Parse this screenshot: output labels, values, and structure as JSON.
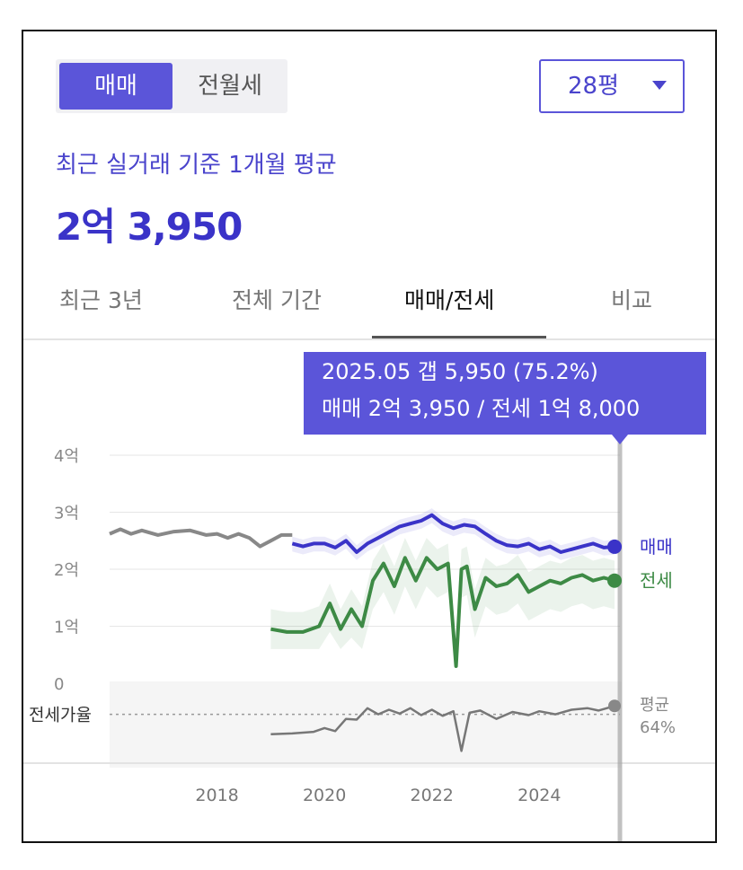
{
  "toggle": {
    "active": "매매",
    "inactive": "전월세"
  },
  "size_select": {
    "value": "28평"
  },
  "summary": {
    "label": "최근 실거래 기준 1개월 평균",
    "price": "2억 3,950"
  },
  "tabs": [
    {
      "label": "최근 3년",
      "active": false
    },
    {
      "label": "전체 기간",
      "active": false
    },
    {
      "label": "매매/전세",
      "active": true
    },
    {
      "label": "비교",
      "active": false
    }
  ],
  "tooltip": {
    "line1": "2025.05  갭 5,950 (75.2%)",
    "line2": "매매 2억 3,950 / 전세 1억 8,000"
  },
  "colors": {
    "accent": "#5b55d9",
    "sale": "#3a33c8",
    "jeonse": "#3d8a45",
    "ratio": "#777777"
  },
  "chart_data": {
    "type": "line",
    "y_ticks": [
      "4억",
      "3억",
      "2억",
      "1억",
      "0"
    ],
    "x_ticks": [
      "2018",
      "2020",
      "2022",
      "2024"
    ],
    "ylim": [
      0,
      4
    ],
    "xlim": [
      2016.0,
      2025.5
    ],
    "y_unit": "억",
    "ratio_label": "전세가율",
    "ratio_end_label": [
      "평균",
      "64%"
    ],
    "series": [
      {
        "name": "매매",
        "pre_x": [
          2016.0,
          2016.2,
          2016.4,
          2016.6,
          2016.9,
          2017.2,
          2017.5,
          2017.8,
          2018.0,
          2018.2,
          2018.4,
          2018.6,
          2018.8,
          2019.0,
          2019.2,
          2019.4
        ],
        "pre_y": [
          2.62,
          2.7,
          2.62,
          2.68,
          2.6,
          2.66,
          2.68,
          2.6,
          2.62,
          2.55,
          2.62,
          2.55,
          2.4,
          2.5,
          2.6,
          2.6
        ],
        "x": [
          2019.4,
          2019.6,
          2019.8,
          2020.0,
          2020.2,
          2020.4,
          2020.6,
          2020.8,
          2021.0,
          2021.2,
          2021.4,
          2021.6,
          2021.8,
          2022.0,
          2022.2,
          2022.4,
          2022.6,
          2022.8,
          2023.0,
          2023.2,
          2023.4,
          2023.6,
          2023.8,
          2024.0,
          2024.2,
          2024.4,
          2024.6,
          2024.8,
          2025.0,
          2025.2,
          2025.4
        ],
        "y": [
          2.45,
          2.4,
          2.45,
          2.45,
          2.38,
          2.5,
          2.3,
          2.45,
          2.55,
          2.65,
          2.75,
          2.8,
          2.85,
          2.95,
          2.8,
          2.72,
          2.78,
          2.75,
          2.62,
          2.5,
          2.42,
          2.4,
          2.45,
          2.35,
          2.4,
          2.3,
          2.35,
          2.4,
          2.45,
          2.38,
          2.395
        ]
      },
      {
        "name": "전세",
        "x": [
          2019.0,
          2019.3,
          2019.6,
          2019.9,
          2020.1,
          2020.3,
          2020.5,
          2020.7,
          2020.9,
          2021.1,
          2021.3,
          2021.5,
          2021.7,
          2021.9,
          2022.1,
          2022.3,
          2022.45,
          2022.55,
          2022.65,
          2022.8,
          2023.0,
          2023.2,
          2023.4,
          2023.6,
          2023.8,
          2024.0,
          2024.2,
          2024.4,
          2024.6,
          2024.8,
          2025.0,
          2025.2,
          2025.4
        ],
        "y": [
          0.95,
          0.9,
          0.9,
          1.0,
          1.4,
          0.95,
          1.3,
          1.0,
          1.8,
          2.1,
          1.7,
          2.2,
          1.8,
          2.2,
          2.0,
          2.1,
          0.3,
          2.0,
          2.05,
          1.3,
          1.85,
          1.7,
          1.75,
          1.9,
          1.6,
          1.7,
          1.8,
          1.75,
          1.85,
          1.9,
          1.8,
          1.85,
          1.8
        ]
      },
      {
        "name": "전세가율",
        "x": [
          2019.0,
          2019.4,
          2019.8,
          2020.0,
          2020.2,
          2020.4,
          2020.6,
          2020.8,
          2021.0,
          2021.2,
          2021.4,
          2021.6,
          2021.8,
          2022.0,
          2022.2,
          2022.4,
          2022.55,
          2022.7,
          2022.9,
          2023.2,
          2023.5,
          2023.8,
          2024.0,
          2024.3,
          2024.6,
          2024.9,
          2025.1,
          2025.4
        ],
        "y": [
          38,
          39,
          41,
          46,
          42,
          58,
          57,
          72,
          64,
          70,
          65,
          72,
          63,
          70,
          62,
          68,
          16,
          66,
          69,
          58,
          67,
          63,
          68,
          64,
          70,
          72,
          69,
          75
        ]
      }
    ]
  }
}
